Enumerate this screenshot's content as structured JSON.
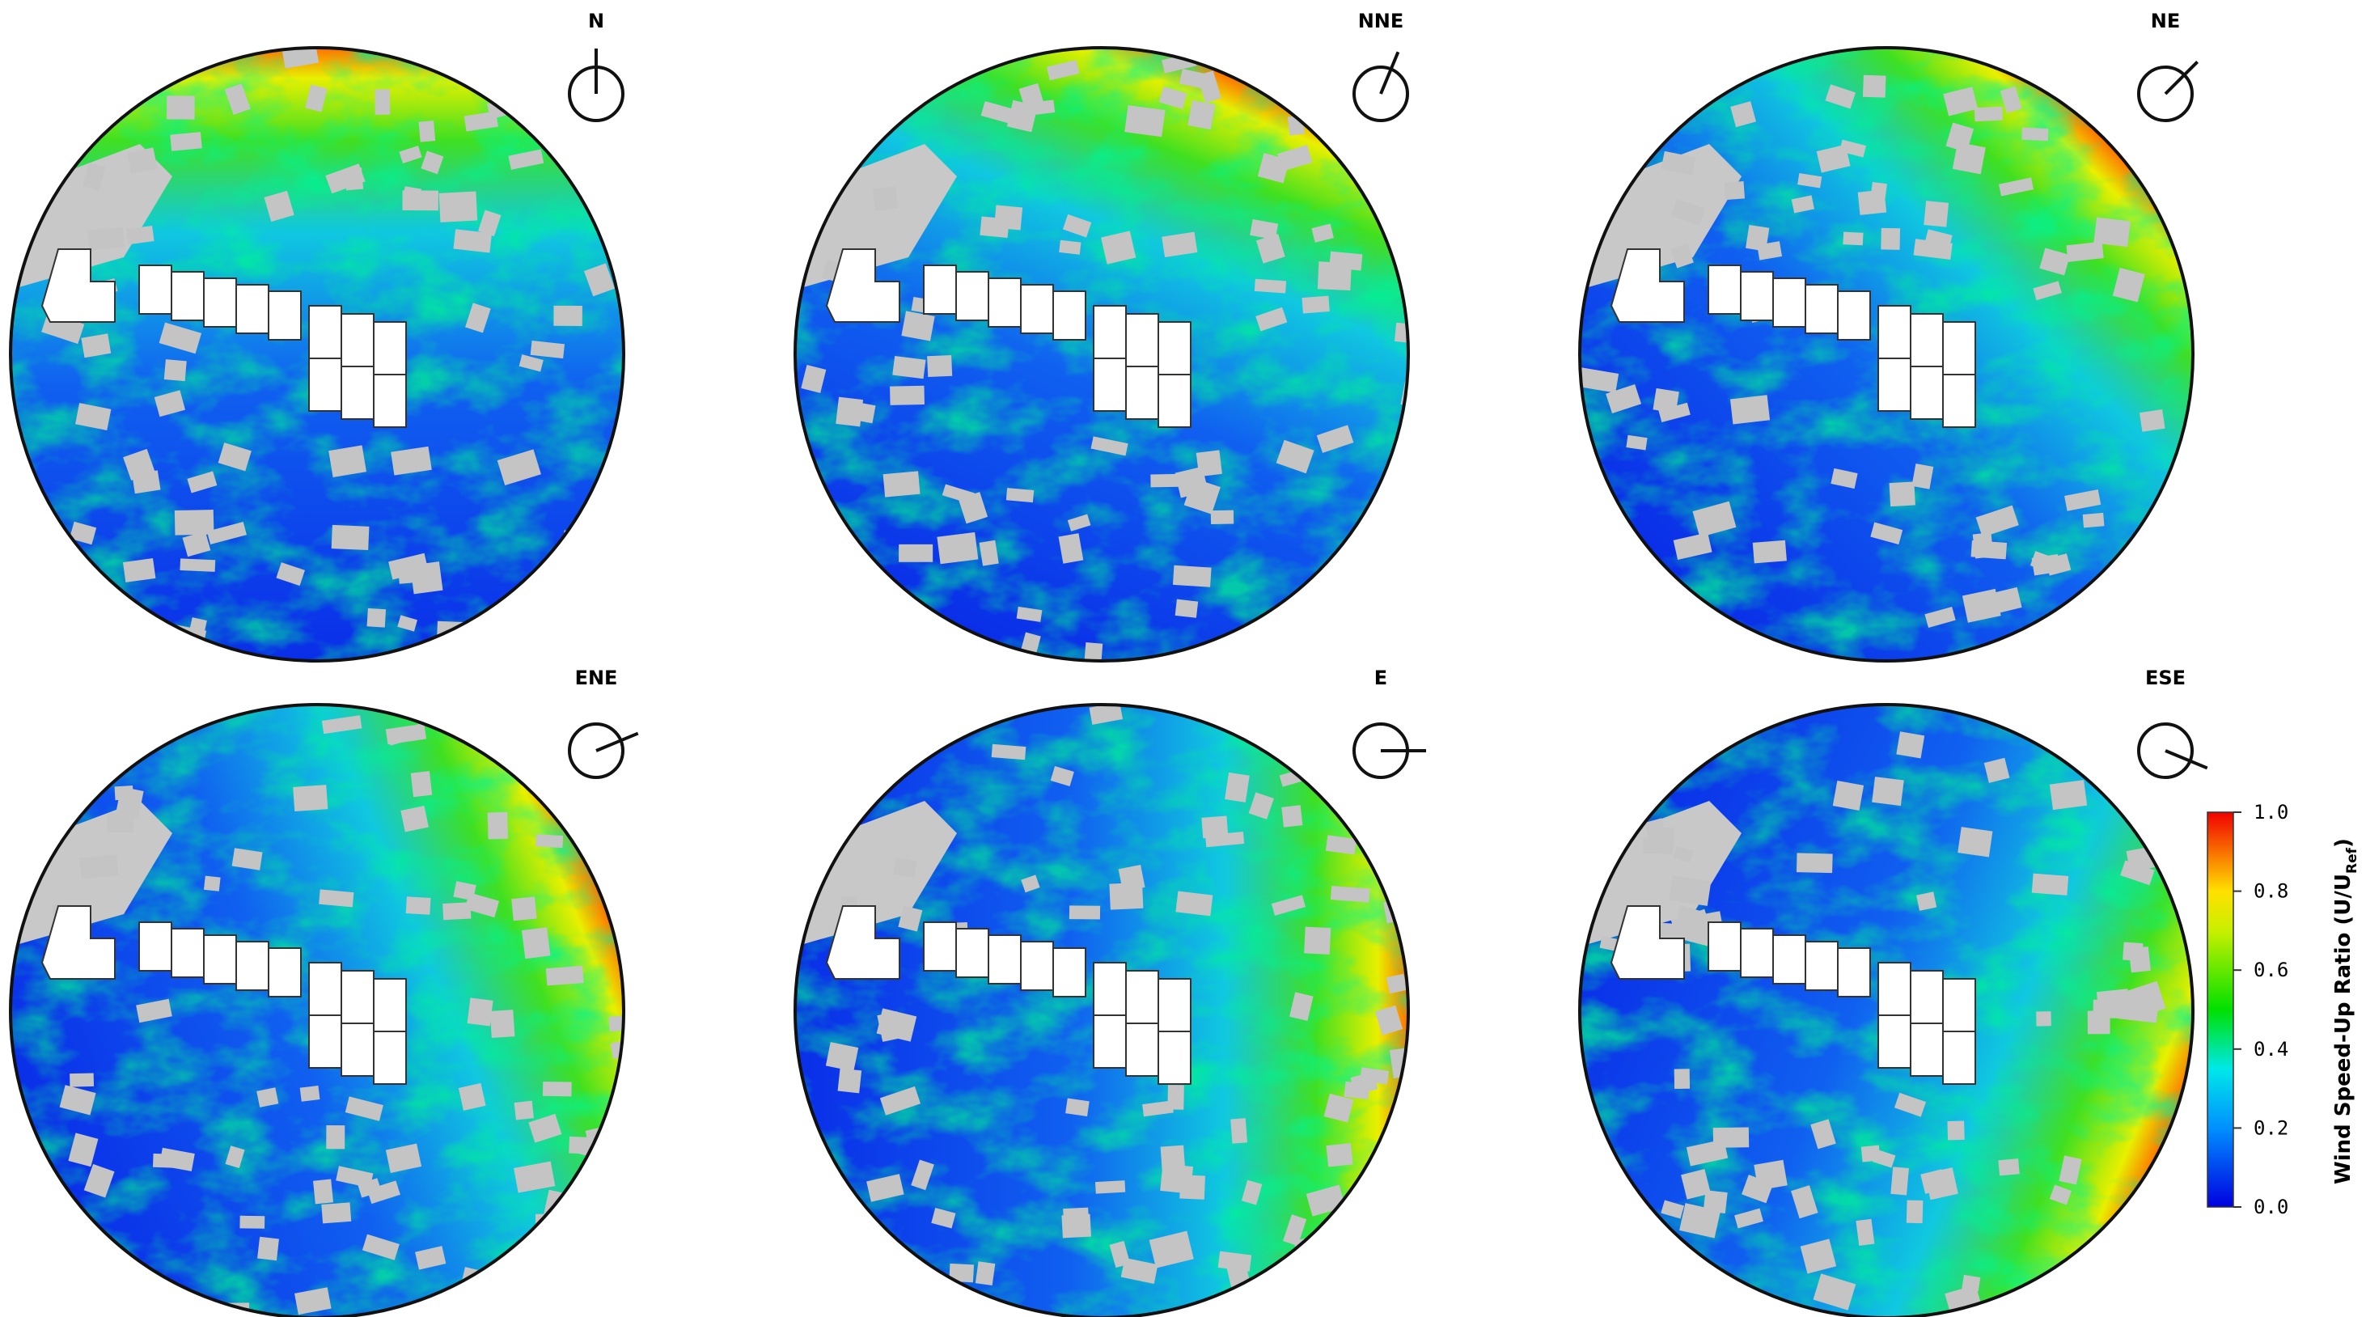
{
  "panels": [
    {
      "label": "N",
      "bearing": 0
    },
    {
      "label": "NNE",
      "bearing": 22.5
    },
    {
      "label": "NE",
      "bearing": 45
    },
    {
      "label": "ENE",
      "bearing": 67.5
    },
    {
      "label": "E",
      "bearing": 90
    },
    {
      "label": "ESE",
      "bearing": 112.5
    }
  ],
  "colorbar": {
    "title": "Wind Speed-Up Ratio (U/U",
    "title_sub": "Ref",
    "title_end": ")",
    "lim": [
      0,
      1
    ],
    "ticks": [
      {
        "value": 0,
        "label": "0.0"
      },
      {
        "value": 0.2,
        "label": "0.2"
      },
      {
        "value": 0.4,
        "label": "0.4"
      },
      {
        "value": 0.6,
        "label": "0.6"
      },
      {
        "value": 0.8,
        "label": "0.8"
      },
      {
        "value": 1,
        "label": "1.0"
      }
    ]
  }
}
